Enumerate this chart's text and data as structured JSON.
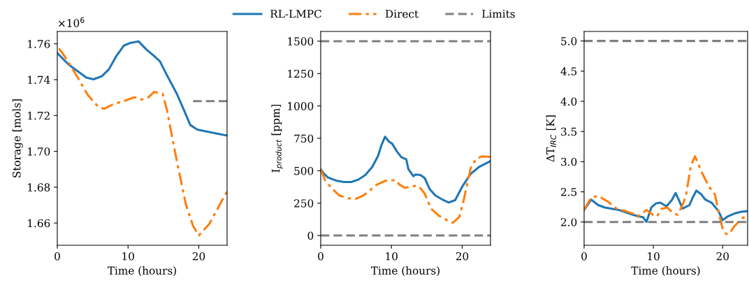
{
  "chart_data": [
    {
      "type": "line",
      "xlabel": "Time (hours)",
      "ylabel": "Storage [mols]",
      "legend": "top",
      "annotations": [
        "×10$^{6}$"
      ],
      "xlim": [
        0,
        24
      ],
      "xticks": [
        0,
        10,
        20
      ],
      "ylim": [
        1.6476,
        1.7669
      ],
      "yticks": [
        1.66,
        1.68,
        {
          "value": 1.7,
          "label": "1.70"
        },
        1.72,
        1.74,
        1.76
      ],
      "series": [
        {
          "name": "RL-LMPC",
          "color": "#1f77b4",
          "line_style": "solid",
          "x": [
            0,
            1.65,
            4.1,
            5.1,
            6.3,
            7.3,
            8.3,
            9.4,
            10.4,
            11.5,
            12.6,
            13.6,
            14.5,
            15.5,
            16.9,
            17.9,
            18.8,
            19.8,
            21.5,
            23.1,
            24
          ],
          "values": [
            1.7548,
            1.7483,
            1.7412,
            1.7402,
            1.7419,
            1.7458,
            1.7529,
            1.759,
            1.7606,
            1.7613,
            1.7568,
            1.7535,
            1.7503,
            1.7425,
            1.7321,
            1.7231,
            1.7147,
            1.7121,
            1.7108,
            1.7095,
            1.7088
          ]
        },
        {
          "name": "Direct",
          "color": "#ff7f0e",
          "line_style": "dashdot",
          "x": [
            0.25,
            1.3,
            2.98,
            4.3,
            5.6,
            6.6,
            7.9,
            9.6,
            10.9,
            11.9,
            12.9,
            13.7,
            14.9,
            15.5,
            16.9,
            18.2,
            19.2,
            20,
            21.5,
            24
          ],
          "values": [
            1.7574,
            1.7516,
            1.7406,
            1.7315,
            1.7257,
            1.7237,
            1.7263,
            1.7283,
            1.7302,
            1.7289,
            1.7302,
            1.7332,
            1.7321,
            1.7231,
            1.6946,
            1.67,
            1.6583,
            1.6531,
            1.6596,
            1.6777
          ]
        },
        {
          "name": "Limits",
          "color": "#7f7f7f",
          "line_style": "dashed",
          "x": [
            19.2,
            24
          ],
          "values": [
            1.728,
            1.728
          ]
        }
      ]
    },
    {
      "type": "line",
      "xlabel": "Time (hours)",
      "ylabel": "I$_{product}$ [ppm]",
      "xlim": [
        0,
        24
      ],
      "xticks": [
        0,
        10,
        20
      ],
      "ylim": [
        -75,
        1575
      ],
      "yticks": [
        0,
        250,
        500,
        750,
        1000,
        1250,
        1500
      ],
      "series": [
        {
          "color": "#1f77b4",
          "line_style": "solid",
          "x": [
            0,
            0.5,
            1,
            2.3,
            3.3,
            4.3,
            5.3,
            6.3,
            7.3,
            8.1,
            8.6,
            9.1,
            9.6,
            10.1,
            10.8,
            11.4,
            12.1,
            12.4,
            13.1,
            13.4,
            14.1,
            14.7,
            15.4,
            16.2,
            17.2,
            18.1,
            19,
            20,
            21.2,
            22.4,
            24
          ],
          "values": [
            512,
            476,
            449,
            422,
            413,
            413,
            431,
            467,
            530,
            614,
            700,
            763,
            727,
            709,
            647,
            605,
            587,
            512,
            458,
            471,
            467,
            444,
            359,
            309,
            278,
            255,
            273,
            377,
            476,
            530,
            575
          ]
        },
        {
          "color": "#ff7f0e",
          "line_style": "dashdot",
          "x": [
            0,
            0.66,
            1.66,
            2.65,
            3.8,
            5,
            6,
            7,
            7.9,
            9.1,
            10.6,
            11.1,
            11.9,
            13.6,
            14.2,
            14.7,
            15.6,
            16.7,
            17.9,
            18.7,
            19.6,
            20.2,
            21.2,
            22,
            22.8,
            24
          ],
          "values": [
            512,
            422,
            359,
            309,
            287,
            284,
            309,
            350,
            392,
            422,
            428,
            395,
            368,
            386,
            359,
            323,
            207,
            153,
            117,
            99,
            144,
            269,
            521,
            593,
            611,
            607
          ]
        },
        {
          "color": "#7f7f7f",
          "line_style": "dashed",
          "x": [
            0,
            24
          ],
          "values": [
            1500,
            1500
          ]
        },
        {
          "color": "#7f7f7f",
          "line_style": "dashed",
          "x": [
            0,
            24
          ],
          "values": [
            0,
            0
          ]
        }
      ]
    },
    {
      "type": "line",
      "xlabel": "Time (hours)",
      "ylabel": "ΔT$_{IRC}$ [K]",
      "xlim": [
        0,
        23.6
      ],
      "xticks": [
        0,
        10,
        20
      ],
      "ylim": [
        1.614,
        5.158
      ],
      "yticks": [
        {
          "value": 2,
          "label": "2.0"
        },
        2.5,
        {
          "value": 3,
          "label": "3.0"
        },
        3.5,
        {
          "value": 4,
          "label": "4.0"
        },
        4.5,
        {
          "value": 5,
          "label": "5.0"
        }
      ],
      "series": [
        {
          "color": "#1f77b4",
          "line_style": "solid",
          "x": [
            0,
            1.03,
            2.03,
            3,
            5,
            7,
            8,
            8.5,
            9,
            9.7,
            10.4,
            11,
            11.9,
            12.7,
            13.2,
            13.7,
            14.2,
            15.2,
            15.7,
            16.2,
            16.9,
            17.5,
            18.4,
            19.4,
            20,
            20.7,
            21.7,
            22.7,
            23.6
          ],
          "values": [
            2.2,
            2.37,
            2.28,
            2.24,
            2.2,
            2.12,
            2.09,
            2.08,
            2.0,
            2.24,
            2.31,
            2.32,
            2.26,
            2.37,
            2.48,
            2.36,
            2.22,
            2.28,
            2.41,
            2.52,
            2.46,
            2.37,
            2.32,
            2.18,
            2.03,
            2.09,
            2.14,
            2.17,
            2.18
          ]
        },
        {
          "color": "#ff7f0e",
          "line_style": "dashdot",
          "x": [
            0,
            1.03,
            2.03,
            3.4,
            4.7,
            6,
            7,
            7.7,
            8.4,
            9,
            9.9,
            10.5,
            11.2,
            12,
            12.9,
            13.5,
            14.2,
            14.7,
            15.4,
            16,
            17,
            18,
            18.9,
            19.5,
            20,
            20.5,
            21,
            21.7,
            22.7,
            23.6
          ],
          "values": [
            2.2,
            2.41,
            2.43,
            2.34,
            2.22,
            2.18,
            2.14,
            2.09,
            2.14,
            2.2,
            2.12,
            2.09,
            2.22,
            2.24,
            2.14,
            2.12,
            2.28,
            2.43,
            2.93,
            3.09,
            2.82,
            2.59,
            2.45,
            2.12,
            1.89,
            1.8,
            1.81,
            1.93,
            2.05,
            2.12
          ]
        },
        {
          "color": "#7f7f7f",
          "line_style": "dashed",
          "x": [
            0,
            23.6
          ],
          "values": [
            5,
            5
          ]
        },
        {
          "color": "#7f7f7f",
          "line_style": "dashed",
          "x": [
            0,
            23.6
          ],
          "values": [
            2,
            2
          ]
        }
      ]
    }
  ]
}
